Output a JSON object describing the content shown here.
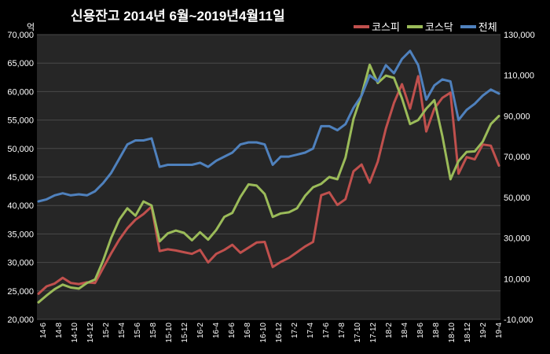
{
  "title": "신용잔고  2014년 6월~2019년4월11일",
  "left_unit": "억",
  "chart_data": {
    "type": "line",
    "title": "신용잔고  2014년 6월~2019년4월11일",
    "xlabel": "",
    "ylabel": "억",
    "y_left": {
      "min": 20000,
      "max": 70000,
      "ticks": [
        "20,000",
        "25,000",
        "30,000",
        "35,000",
        "40,000",
        "45,000",
        "50,000",
        "55,000",
        "60,000",
        "65,000",
        "70,000"
      ]
    },
    "y_right": {
      "min": -10000,
      "max": 130000,
      "ticks": [
        "-10,000",
        "10,000",
        "30,000",
        "50,000",
        "70,000",
        "90,000",
        "110,000",
        "130,000"
      ]
    },
    "x_ticks": [
      "14-6",
      "14-8",
      "14-10",
      "14-12",
      "15-2",
      "15-4",
      "15-6",
      "15-8",
      "15-10",
      "15-12",
      "16-2",
      "16-4",
      "16-6",
      "16-8",
      "16-10",
      "16-12",
      "17-2",
      "17-4",
      "17-6",
      "17-8",
      "17-10",
      "17-12",
      "18-2",
      "18-4",
      "18-6",
      "18-8",
      "18-10",
      "18-12",
      "19-2",
      "19-4"
    ],
    "grid": true,
    "legend": {
      "position": "top-right"
    },
    "series": [
      {
        "name": "코스피",
        "color": "#C0504D",
        "axis": "left",
        "values": [
          24500,
          25800,
          26300,
          27300,
          26400,
          26200,
          26500,
          26400,
          29000,
          31600,
          34000,
          36000,
          37500,
          38500,
          39800,
          32000,
          32300,
          32100,
          31800,
          31500,
          32200,
          30000,
          31500,
          32200,
          33100,
          31700,
          32600,
          33500,
          33600,
          29200,
          30100,
          30800,
          31800,
          32800,
          33600,
          41800,
          42300,
          40100,
          41100,
          46000,
          47200,
          44000,
          47700,
          53500,
          58000,
          61300,
          57000,
          62700,
          53000,
          57000,
          58900,
          59800,
          45600,
          48500,
          48100,
          50700,
          50500,
          47000
        ]
      },
      {
        "name": "코스닥",
        "color": "#9BBB59",
        "axis": "left",
        "values": [
          23000,
          24200,
          25300,
          26100,
          25600,
          25400,
          26400,
          27000,
          30300,
          34300,
          37500,
          39500,
          38200,
          40700,
          40000,
          33700,
          35100,
          35600,
          35200,
          33900,
          35300,
          34000,
          35700,
          38000,
          38700,
          41500,
          43700,
          43500,
          42000,
          38000,
          38600,
          38800,
          39500,
          41700,
          43200,
          43800,
          45000,
          44600,
          48400,
          55200,
          59400,
          64700,
          61500,
          62800,
          62400,
          58800,
          54300,
          55000,
          57000,
          58500,
          52200,
          44600,
          47800,
          49400,
          49500,
          51200,
          54300,
          55700
        ]
      },
      {
        "name": "전체",
        "color": "#4F81BD",
        "axis": "right",
        "values": [
          48000,
          49000,
          51000,
          52000,
          51000,
          51500,
          51000,
          53000,
          57000,
          62000,
          69000,
          76000,
          78000,
          78000,
          79000,
          65000,
          66000,
          66000,
          66000,
          66000,
          67000,
          65000,
          68000,
          70000,
          72000,
          76000,
          77000,
          77000,
          76000,
          66000,
          70000,
          70000,
          71000,
          72000,
          74000,
          85000,
          85000,
          83000,
          86000,
          94000,
          100000,
          110000,
          107000,
          115000,
          111000,
          118000,
          122000,
          115000,
          98000,
          105000,
          108000,
          107000,
          88000,
          93000,
          96000,
          100000,
          103000,
          101000
        ]
      }
    ]
  }
}
